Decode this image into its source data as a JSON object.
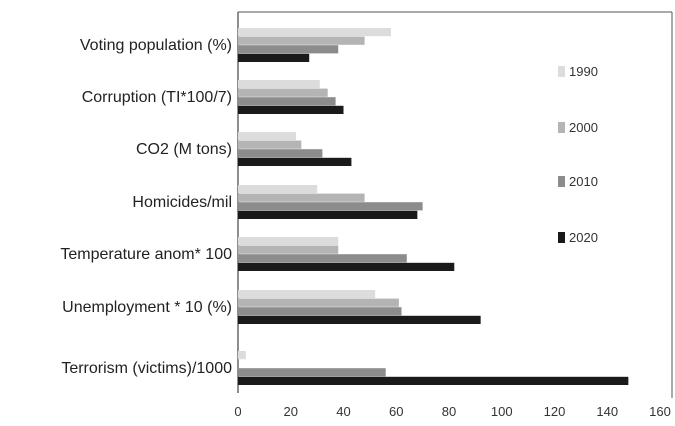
{
  "chart_data": {
    "type": "bar",
    "orientation": "horizontal",
    "categories": [
      "Voting population (%)",
      "Corruption (TI*100/7)",
      "CO2 (M tons)",
      "Homicides/mil",
      "Temperature anom* 100",
      "Unemployment * 10 (%)",
      "Terrorism (victims)/1000"
    ],
    "series": [
      {
        "name": "1990",
        "color": "#dcdcdc",
        "values": [
          58,
          31,
          22,
          30,
          38,
          52,
          3
        ]
      },
      {
        "name": "2000",
        "color": "#b4b4b4",
        "values": [
          48,
          34,
          24,
          48,
          38,
          61,
          0
        ]
      },
      {
        "name": "2010",
        "color": "#8c8c8c",
        "values": [
          38,
          37,
          32,
          70,
          64,
          62,
          56
        ]
      },
      {
        "name": "2020",
        "color": "#1a1a1a",
        "values": [
          27,
          40,
          43,
          68,
          82,
          92,
          148
        ]
      }
    ],
    "xlim": [
      0,
      160
    ],
    "xticks": [
      "0",
      "20",
      "40",
      "60",
      "80",
      "100",
      "120",
      "140",
      "160"
    ],
    "grid": false,
    "legend_position": "right"
  }
}
